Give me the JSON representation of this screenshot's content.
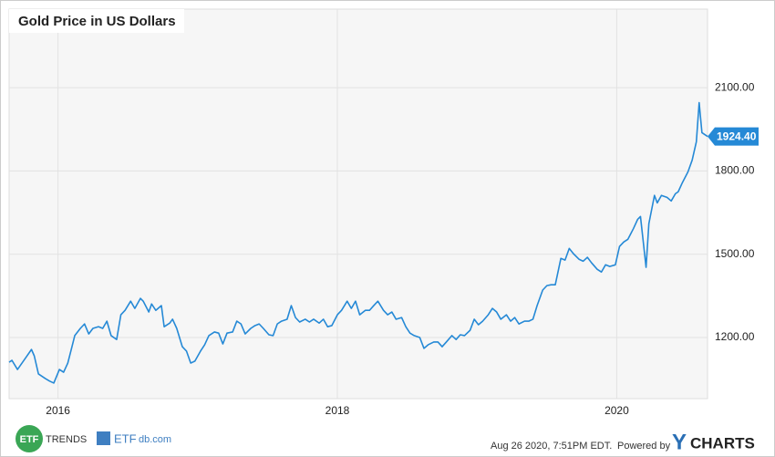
{
  "chart_data": {
    "type": "line",
    "title": "Gold Price in US Dollars",
    "color": "#2589d6",
    "x": [
      2015.65,
      2015.67,
      2015.71,
      2015.77,
      2015.81,
      2015.83,
      2015.86,
      2015.91,
      2015.94,
      2015.97,
      2016.01,
      2016.04,
      2016.07,
      2016.1,
      2016.12,
      2016.16,
      2016.19,
      2016.22,
      2016.25,
      2016.29,
      2016.32,
      2016.35,
      2016.38,
      2016.42,
      2016.45,
      2016.48,
      2016.52,
      2016.55,
      2016.59,
      2016.61,
      2016.65,
      2016.67,
      2016.7,
      2016.74,
      2016.76,
      2016.8,
      2016.82,
      2016.85,
      2016.89,
      2016.92,
      2016.95,
      2016.98,
      2017.02,
      2017.05,
      2017.08,
      2017.12,
      2017.15,
      2017.18,
      2017.21,
      2017.25,
      2017.28,
      2017.31,
      2017.34,
      2017.38,
      2017.41,
      2017.44,
      2017.47,
      2017.51,
      2017.54,
      2017.57,
      2017.6,
      2017.64,
      2017.67,
      2017.7,
      2017.73,
      2017.77,
      2017.8,
      2017.83,
      2017.87,
      2017.9,
      2017.93,
      2017.96,
      2018.0,
      2018.03,
      2018.07,
      2018.1,
      2018.13,
      2018.16,
      2018.2,
      2018.23,
      2018.26,
      2018.29,
      2018.33,
      2018.36,
      2018.39,
      2018.42,
      2018.46,
      2018.49,
      2018.52,
      2018.55,
      2018.59,
      2018.62,
      2018.65,
      2018.69,
      2018.72,
      2018.75,
      2018.78,
      2018.82,
      2018.85,
      2018.88,
      2018.91,
      2018.95,
      2018.98,
      2019.01,
      2019.04,
      2019.08,
      2019.11,
      2019.14,
      2019.17,
      2019.21,
      2019.24,
      2019.27,
      2019.3,
      2019.34,
      2019.37,
      2019.4,
      2019.43,
      2019.47,
      2019.5,
      2019.53,
      2019.56,
      2019.6,
      2019.63,
      2019.66,
      2019.69,
      2019.73,
      2019.76,
      2019.79,
      2019.82,
      2019.86,
      2019.89,
      2019.92,
      2019.95,
      2019.99,
      2020.02,
      2020.05,
      2020.08,
      2020.12,
      2020.15,
      2020.17,
      2020.21,
      2020.23,
      2020.27,
      2020.29,
      2020.32,
      2020.36,
      2020.39,
      2020.42,
      2020.44,
      2020.47,
      2020.51,
      2020.54,
      2020.57,
      2020.59,
      2020.61,
      2020.65
    ],
    "values": [
      1111,
      1118,
      1085,
      1128,
      1157,
      1134,
      1069,
      1052,
      1043,
      1036,
      1085,
      1075,
      1108,
      1167,
      1207,
      1233,
      1249,
      1213,
      1233,
      1239,
      1233,
      1259,
      1207,
      1193,
      1282,
      1298,
      1331,
      1305,
      1341,
      1331,
      1292,
      1321,
      1298,
      1315,
      1239,
      1252,
      1266,
      1233,
      1167,
      1151,
      1108,
      1115,
      1151,
      1174,
      1207,
      1220,
      1216,
      1177,
      1216,
      1220,
      1259,
      1249,
      1213,
      1233,
      1243,
      1249,
      1233,
      1210,
      1207,
      1249,
      1259,
      1266,
      1315,
      1272,
      1256,
      1266,
      1256,
      1266,
      1252,
      1266,
      1239,
      1243,
      1282,
      1298,
      1331,
      1305,
      1331,
      1282,
      1298,
      1298,
      1315,
      1331,
      1298,
      1282,
      1292,
      1266,
      1272,
      1239,
      1216,
      1207,
      1200,
      1161,
      1174,
      1184,
      1184,
      1167,
      1184,
      1207,
      1193,
      1210,
      1207,
      1226,
      1266,
      1246,
      1259,
      1282,
      1305,
      1292,
      1266,
      1282,
      1259,
      1272,
      1249,
      1259,
      1259,
      1266,
      1315,
      1371,
      1387,
      1390,
      1390,
      1485,
      1479,
      1521,
      1502,
      1482,
      1475,
      1489,
      1469,
      1446,
      1436,
      1462,
      1456,
      1462,
      1528,
      1544,
      1554,
      1593,
      1626,
      1636,
      1453,
      1610,
      1712,
      1685,
      1712,
      1705,
      1692,
      1718,
      1725,
      1758,
      1797,
      1839,
      1905,
      2046,
      1938,
      1924.4
    ],
    "value_labels": [
      null,
      null,
      null,
      null,
      null,
      null,
      null,
      null,
      null,
      null,
      null,
      null,
      null,
      null,
      null,
      null,
      null,
      null,
      null,
      null,
      null,
      null,
      null,
      null,
      null,
      null,
      null,
      null,
      null,
      null,
      null,
      null,
      null,
      null,
      null,
      null,
      null,
      null,
      null,
      null,
      null,
      null,
      null,
      null,
      null,
      null,
      null,
      null,
      null,
      null,
      null,
      null,
      null,
      null,
      null,
      null,
      null,
      null,
      null,
      null,
      null,
      null,
      null,
      null,
      null,
      null,
      null,
      null,
      null,
      null,
      null,
      null,
      null,
      null,
      null,
      null,
      null,
      null,
      null,
      null,
      null,
      null,
      null,
      null,
      null,
      null,
      null,
      null,
      null,
      null,
      null,
      null,
      null,
      null,
      null,
      null,
      null,
      null,
      null,
      null,
      null,
      null,
      null,
      null,
      null,
      null,
      null,
      null,
      null,
      null,
      null,
      null,
      null,
      null,
      null,
      null,
      null,
      null,
      null,
      null,
      null,
      null,
      null,
      null,
      null,
      null,
      null,
      null,
      null,
      null,
      null,
      null,
      null,
      null,
      null,
      null,
      null,
      null,
      null,
      null,
      null,
      null,
      null,
      null,
      null,
      null,
      null,
      null,
      null,
      null,
      null,
      null,
      null,
      null,
      null,
      "1924.40"
    ],
    "xlim": [
      2015.65,
      2020.65
    ],
    "xticks": [
      2016,
      2018,
      2020
    ],
    "ylim": [
      980,
      2383
    ],
    "yticks": [
      {
        "value": 1200,
        "label": "1200.00"
      },
      {
        "value": 1500,
        "label": "1500.00"
      },
      {
        "value": 1800,
        "label": "1800.00"
      },
      {
        "value": 2100,
        "label": "2100.00"
      }
    ],
    "grid": true
  },
  "footer": {
    "etftrends_badge": "ETF",
    "etftrends_word": "TRENDS",
    "etfdb_a": "ETF",
    "etfdb_b": "db.com",
    "timestamp": "Aug 26 2020, 7:51PM EDT.",
    "powered": "Powered by",
    "brand_y": "Y",
    "brand_rest": "CHARTS"
  }
}
